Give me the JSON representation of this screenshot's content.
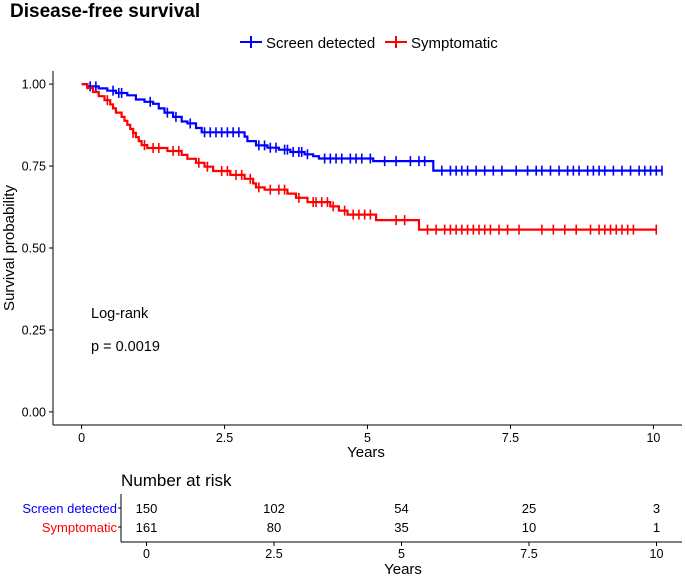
{
  "chart_data": {
    "type": "line",
    "subtype": "kaplan-meier",
    "title": "Disease-free survival",
    "xlabel": "Years",
    "ylabel": "Survival probability",
    "xlim": [
      -0.5,
      10.5
    ],
    "ylim": [
      -0.04,
      1.04
    ],
    "x_ticks": [
      0,
      2.5,
      5,
      7.5,
      10
    ],
    "x_tick_labels": [
      "0",
      "2.5",
      "5",
      "7.5",
      "10"
    ],
    "y_ticks": [
      0,
      0.25,
      0.5,
      0.75,
      1.0
    ],
    "y_tick_labels": [
      "0.00",
      "0.25",
      "0.50",
      "0.75",
      "1.00"
    ],
    "grid": false,
    "legend_position": "top",
    "annotations": [
      "Log-rank",
      "p = 0.0019"
    ],
    "series": [
      {
        "name": "Screen detected",
        "color": "#0000ff",
        "steps": [
          [
            0,
            1.0
          ],
          [
            0.1,
            0.993
          ],
          [
            0.3,
            0.987
          ],
          [
            0.45,
            0.98
          ],
          [
            0.6,
            0.973
          ],
          [
            0.8,
            0.966
          ],
          [
            0.95,
            0.953
          ],
          [
            1.1,
            0.946
          ],
          [
            1.25,
            0.94
          ],
          [
            1.35,
            0.926
          ],
          [
            1.45,
            0.913
          ],
          [
            1.6,
            0.9
          ],
          [
            1.75,
            0.886
          ],
          [
            1.85,
            0.88
          ],
          [
            2.0,
            0.866
          ],
          [
            2.1,
            0.853
          ],
          [
            2.85,
            0.84
          ],
          [
            2.9,
            0.826
          ],
          [
            3.05,
            0.813
          ],
          [
            3.25,
            0.806
          ],
          [
            3.45,
            0.8
          ],
          [
            3.65,
            0.793
          ],
          [
            3.9,
            0.786
          ],
          [
            4.05,
            0.78
          ],
          [
            4.15,
            0.773
          ],
          [
            5.1,
            0.765
          ],
          [
            6.15,
            0.736
          ]
        ],
        "end": 10.15,
        "censor": [
          0.15,
          0.25,
          0.55,
          0.65,
          0.7,
          1.2,
          1.5,
          1.65,
          1.9,
          2.15,
          2.25,
          2.35,
          2.45,
          2.55,
          2.65,
          2.75,
          3.1,
          3.2,
          3.3,
          3.4,
          3.55,
          3.6,
          3.7,
          3.8,
          3.85,
          3.95,
          4.25,
          4.35,
          4.45,
          4.55,
          4.7,
          4.8,
          4.9,
          5.05,
          5.3,
          5.5,
          5.75,
          5.9,
          6.0,
          6.3,
          6.45,
          6.55,
          6.65,
          6.75,
          6.9,
          7.05,
          7.2,
          7.35,
          7.6,
          7.8,
          7.95,
          8.05,
          8.2,
          8.35,
          8.5,
          8.6,
          8.7,
          8.85,
          8.95,
          9.05,
          9.15,
          9.3,
          9.45,
          9.6,
          9.75,
          9.85,
          9.95,
          10.05,
          10.15
        ]
      },
      {
        "name": "Symptomatic",
        "color": "#ff0000",
        "steps": [
          [
            0,
            1.0
          ],
          [
            0.1,
            0.988
          ],
          [
            0.2,
            0.976
          ],
          [
            0.3,
            0.963
          ],
          [
            0.4,
            0.951
          ],
          [
            0.5,
            0.938
          ],
          [
            0.55,
            0.926
          ],
          [
            0.6,
            0.913
          ],
          [
            0.7,
            0.9
          ],
          [
            0.75,
            0.888
          ],
          [
            0.8,
            0.876
          ],
          [
            0.85,
            0.863
          ],
          [
            0.9,
            0.851
          ],
          [
            0.95,
            0.838
          ],
          [
            1.0,
            0.826
          ],
          [
            1.05,
            0.814
          ],
          [
            1.15,
            0.805
          ],
          [
            1.5,
            0.796
          ],
          [
            1.75,
            0.784
          ],
          [
            1.85,
            0.772
          ],
          [
            2.0,
            0.76
          ],
          [
            2.15,
            0.748
          ],
          [
            2.3,
            0.735
          ],
          [
            2.6,
            0.723
          ],
          [
            2.85,
            0.711
          ],
          [
            3.0,
            0.697
          ],
          [
            3.05,
            0.685
          ],
          [
            3.2,
            0.678
          ],
          [
            3.6,
            0.666
          ],
          [
            3.75,
            0.653
          ],
          [
            3.95,
            0.64
          ],
          [
            4.35,
            0.627
          ],
          [
            4.5,
            0.614
          ],
          [
            4.65,
            0.602
          ],
          [
            5.15,
            0.585
          ],
          [
            5.9,
            0.556
          ]
        ],
        "end": 10.05,
        "censor": [
          0.45,
          0.9,
          1.1,
          1.25,
          1.35,
          1.6,
          1.7,
          2.05,
          2.2,
          2.45,
          2.55,
          2.7,
          2.8,
          2.95,
          3.1,
          3.3,
          3.45,
          3.55,
          3.8,
          4.05,
          4.1,
          4.2,
          4.3,
          4.4,
          4.6,
          4.75,
          4.85,
          4.95,
          5.05,
          5.5,
          5.65,
          6.05,
          6.2,
          6.35,
          6.45,
          6.55,
          6.65,
          6.75,
          6.85,
          6.95,
          7.05,
          7.15,
          7.3,
          7.45,
          7.65,
          8.05,
          8.25,
          8.45,
          8.65,
          8.9,
          9.05,
          9.15,
          9.25,
          9.35,
          9.45,
          9.55,
          9.65,
          10.05
        ]
      }
    ],
    "risk_table": {
      "title": "Number at risk",
      "xlabel": "Years",
      "x_ticks": [
        0,
        2.5,
        5,
        7.5,
        10
      ],
      "x_tick_labels": [
        "0",
        "2.5",
        "5",
        "7.5",
        "10"
      ],
      "rows": [
        {
          "name": "Screen detected",
          "color": "#0000ff",
          "values": [
            150,
            102,
            54,
            25,
            3
          ]
        },
        {
          "name": "Symptomatic",
          "color": "#ff0000",
          "values": [
            161,
            80,
            35,
            10,
            1
          ]
        }
      ]
    }
  }
}
